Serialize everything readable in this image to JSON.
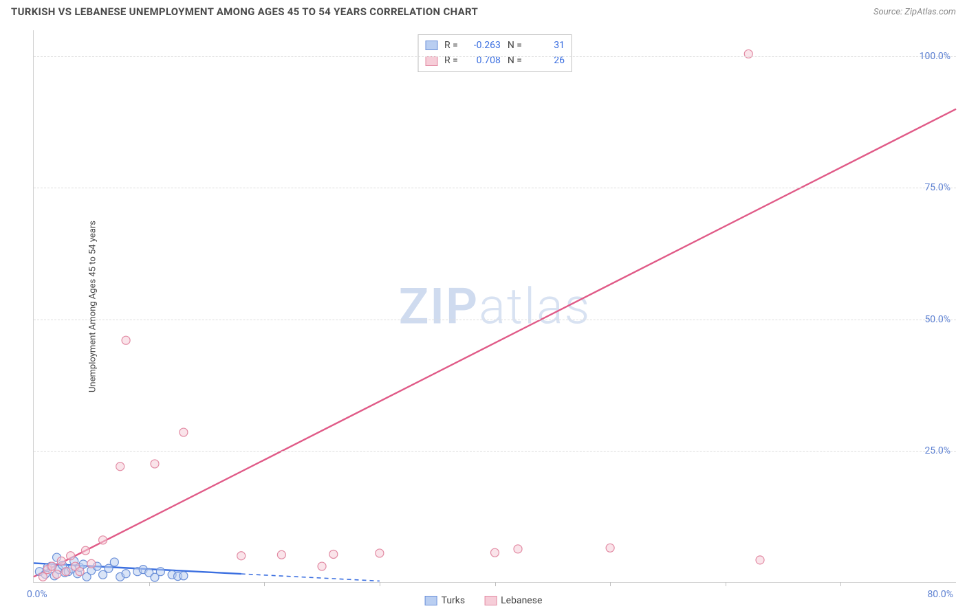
{
  "header": {
    "title": "TURKISH VS LEBANESE UNEMPLOYMENT AMONG AGES 45 TO 54 YEARS CORRELATION CHART",
    "source": "Source: ZipAtlas.com"
  },
  "watermark": {
    "bold": "ZIP",
    "light": "atlas"
  },
  "chart": {
    "type": "scatter",
    "ylabel": "Unemployment Among Ages 45 to 54 years",
    "xlim": [
      0,
      80
    ],
    "ylim": [
      0,
      105
    ],
    "xtick_step": 10,
    "ytick_step": 25,
    "ytick_labels": [
      "25.0%",
      "50.0%",
      "75.0%",
      "100.0%"
    ],
    "xorigin_label": "0.0%",
    "xmax_label": "80.0%",
    "grid_color": "#dcdcdc",
    "axis_color": "#d0d0d0",
    "background_color": "#ffffff",
    "label_color": "#5b7fd1",
    "series": [
      {
        "name": "Turks",
        "color_fill": "#b9cef1",
        "color_stroke": "#6a8fd8",
        "R": "-0.263",
        "N": "31",
        "marker_radius": 6,
        "points": [
          [
            0.5,
            2.0
          ],
          [
            1.0,
            1.5
          ],
          [
            1.2,
            2.8
          ],
          [
            1.5,
            3.0
          ],
          [
            1.8,
            1.2
          ],
          [
            2.0,
            4.7
          ],
          [
            2.2,
            2.4
          ],
          [
            2.5,
            3.2
          ],
          [
            2.7,
            1.8
          ],
          [
            3.0,
            2.0
          ],
          [
            3.3,
            2.5
          ],
          [
            3.5,
            4.0
          ],
          [
            3.8,
            1.6
          ],
          [
            4.0,
            2.8
          ],
          [
            4.3,
            3.4
          ],
          [
            4.6,
            1.0
          ],
          [
            5.0,
            2.2
          ],
          [
            5.5,
            3.0
          ],
          [
            6.0,
            1.4
          ],
          [
            6.5,
            2.6
          ],
          [
            7.0,
            3.8
          ],
          [
            7.5,
            1.0
          ],
          [
            8.0,
            1.6
          ],
          [
            9.0,
            2.0
          ],
          [
            9.5,
            2.4
          ],
          [
            10.0,
            1.8
          ],
          [
            10.5,
            0.9
          ],
          [
            11.0,
            2.0
          ],
          [
            12.0,
            1.4
          ],
          [
            12.5,
            1.1
          ],
          [
            13.0,
            1.2
          ]
        ],
        "regression": {
          "x1": 0,
          "y1": 3.6,
          "x2": 30,
          "y2": 0.2,
          "dashed_after_x": 18
        }
      },
      {
        "name": "Lebanese",
        "color_fill": "#f6cdd8",
        "color_stroke": "#e28aa3",
        "R": "0.708",
        "N": "26",
        "marker_radius": 6,
        "points": [
          [
            0.8,
            1.0
          ],
          [
            1.2,
            2.4
          ],
          [
            1.6,
            3.0
          ],
          [
            2.0,
            1.5
          ],
          [
            2.4,
            4.0
          ],
          [
            2.8,
            2.0
          ],
          [
            3.2,
            5.0
          ],
          [
            3.6,
            3.0
          ],
          [
            4.0,
            2.0
          ],
          [
            4.5,
            6.0
          ],
          [
            5.0,
            3.5
          ],
          [
            6.0,
            8.0
          ],
          [
            7.5,
            22.0
          ],
          [
            8.0,
            46.0
          ],
          [
            10.5,
            22.5
          ],
          [
            13.0,
            28.5
          ],
          [
            18.0,
            5.0
          ],
          [
            21.5,
            5.2
          ],
          [
            25.0,
            3.0
          ],
          [
            26.0,
            5.3
          ],
          [
            30.0,
            5.5
          ],
          [
            40.0,
            5.6
          ],
          [
            42.0,
            6.3
          ],
          [
            50.0,
            6.5
          ],
          [
            62.0,
            100.5
          ],
          [
            63.0,
            4.2
          ]
        ],
        "regression": {
          "x1": 0,
          "y1": 1.0,
          "x2": 80,
          "y2": 90.0,
          "dashed_after_x": 80
        }
      }
    ],
    "statbox": {
      "R_label": "R =",
      "N_label": "N ="
    },
    "legend_labels": [
      "Turks",
      "Lebanese"
    ]
  }
}
